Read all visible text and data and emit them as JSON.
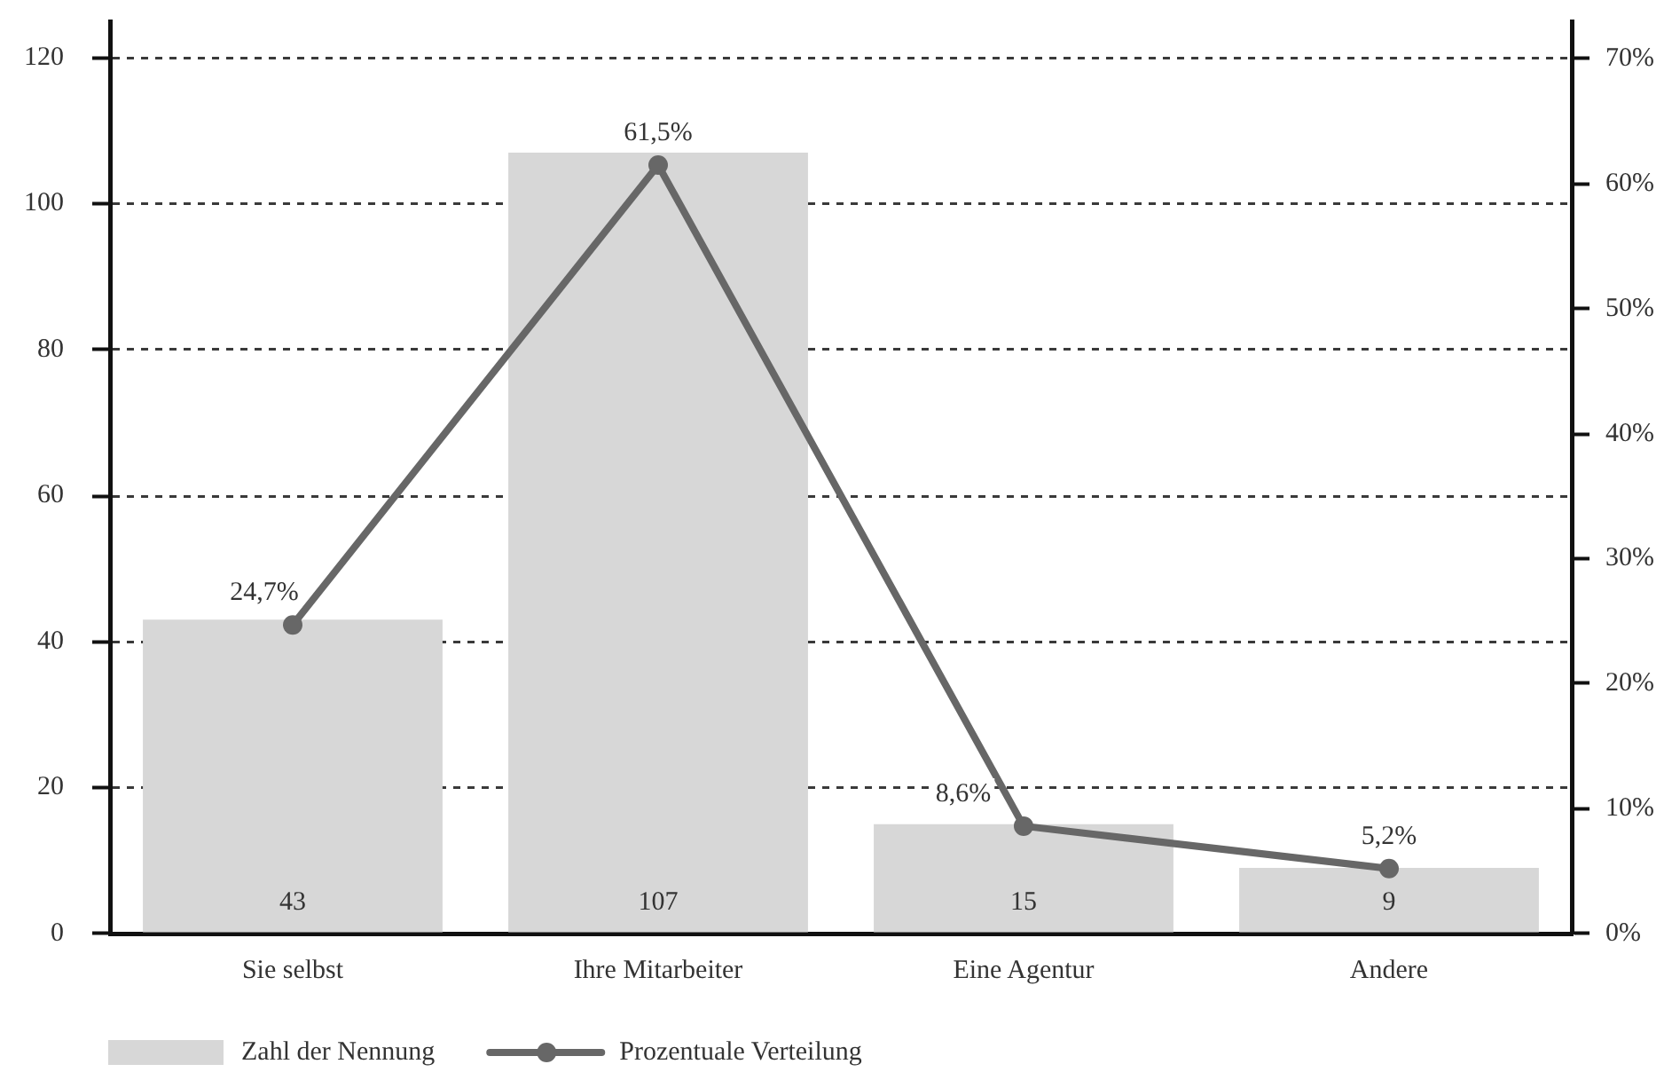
{
  "chart_data": {
    "type": "bar",
    "categories": [
      "Sie selbst",
      "Ihre Mitarbeiter",
      "Eine Agentur",
      "Andere"
    ],
    "series": [
      {
        "name": "Zahl der Nennung",
        "color": "#d7d7d7",
        "values": [
          43,
          107,
          15,
          9
        ],
        "value_labels": [
          "43",
          "107",
          "15",
          "9"
        ]
      },
      {
        "name": "Prozentuale Verteilung",
        "type": "line",
        "axis": "y2",
        "color": "#676767",
        "values": [
          24.7,
          61.5,
          8.6,
          5.2
        ],
        "value_labels": [
          "24,7%",
          "61,5%",
          "8,6%",
          "5,2%"
        ]
      }
    ],
    "ylim": [
      0,
      125
    ],
    "yticks": [
      0,
      20,
      40,
      60,
      80,
      100,
      120
    ],
    "y2lim": [
      0,
      73
    ],
    "y2ticks": [
      {
        "value": 0,
        "label": "0%"
      },
      {
        "value": 10,
        "label": "10%"
      },
      {
        "value": 20,
        "label": "20%"
      },
      {
        "value": 30,
        "label": "30%"
      },
      {
        "value": 40,
        "label": "40%"
      },
      {
        "value": 50,
        "label": "50%"
      },
      {
        "value": 60,
        "label": "60%"
      },
      {
        "value": 70,
        "label": "70%"
      }
    ],
    "grid": "y",
    "legend": "bottom",
    "marker": "circle",
    "line_style": "solid"
  }
}
